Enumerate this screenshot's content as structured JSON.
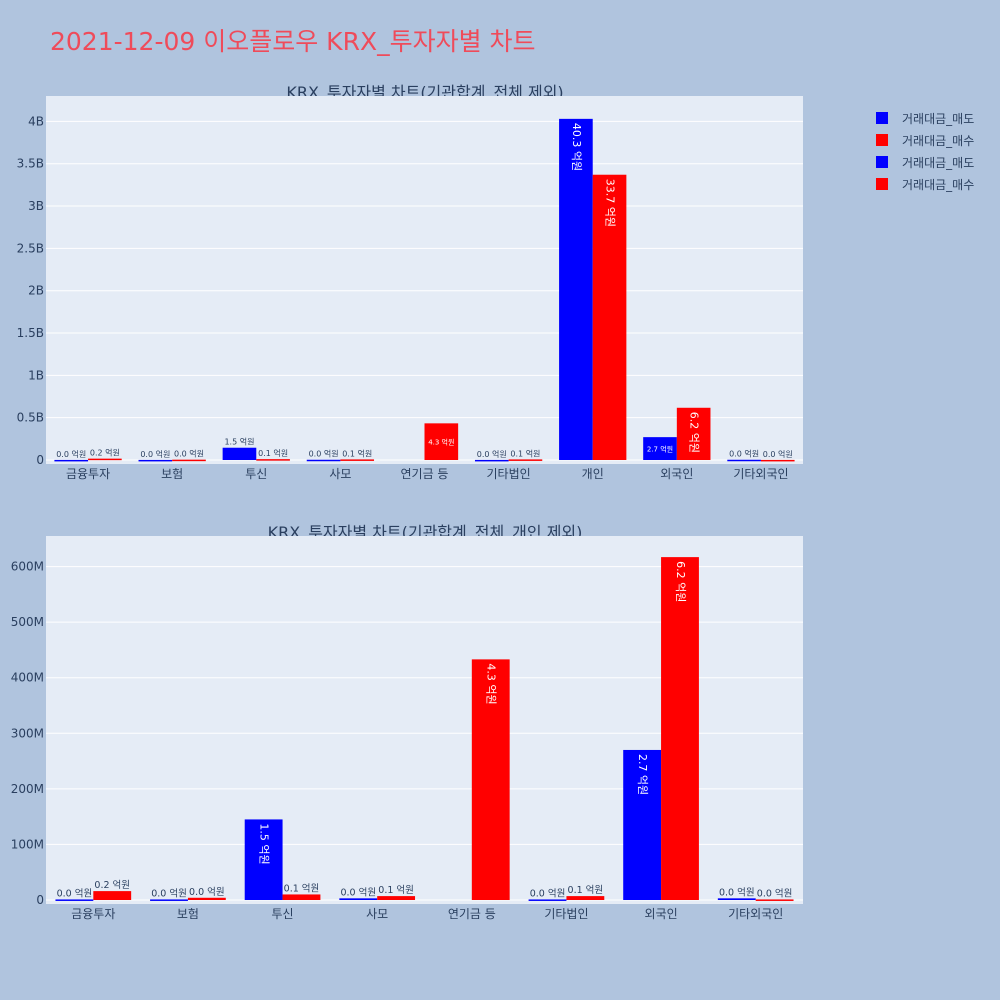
{
  "page": {
    "title": "2021-12-09 이오플로우 KRX_투자자별 차트"
  },
  "legend": [
    {
      "label": "거래대금_매도",
      "color": "#0000ff"
    },
    {
      "label": "거래대금_매수",
      "color": "#ff0000"
    },
    {
      "label": "거래대금_매도",
      "color": "#0000ff"
    },
    {
      "label": "거래대금_매수",
      "color": "#ff0000"
    }
  ],
  "chart_data": [
    {
      "type": "bar",
      "title": "KRX_투자자별 차트(기관합계_전체 제외)",
      "categories": [
        "금융투자",
        "보험",
        "투신",
        "사모",
        "연기금 등",
        "기타법인",
        "개인",
        "외국인",
        "기타외국인"
      ],
      "ylim": [
        0,
        4300000000
      ],
      "yticks": [
        0,
        500000000,
        1000000000,
        1500000000,
        2000000000,
        2500000000,
        3000000000,
        3500000000,
        4000000000
      ],
      "ytick_labels": [
        "0",
        "0.5B",
        "1B",
        "1.5B",
        "2B",
        "2.5B",
        "3B",
        "3.5B",
        "4B"
      ],
      "series": [
        {
          "name": "거래대금_매도",
          "color": "#0000ff",
          "values": [
            1000000,
            1000000,
            145000000,
            3000000,
            0,
            1000000,
            4030000000,
            270000000,
            3000000
          ],
          "labels": [
            "0.0 억원",
            "0.0 억원",
            "1.5 억원",
            "0.0 억원",
            "",
            "0.0 억원",
            "40.3 억원",
            "2.7 억원",
            "0.0 억원"
          ]
        },
        {
          "name": "거래대금_매수",
          "color": "#ff0000",
          "values": [
            16000000,
            4000000,
            10000000,
            7000000,
            433000000,
            7000000,
            3370000000,
            617000000,
            1000000
          ],
          "labels": [
            "0.2 억원",
            "0.0 억원",
            "0.1 억원",
            "0.1 억원",
            "4.3 억원",
            "0.1 억원",
            "33.7 억원",
            "6.2 억원",
            "0.0 억원"
          ]
        }
      ]
    },
    {
      "type": "bar",
      "title": "KRX_투자자별 차트(기관합계_전체_개인 제외)",
      "categories": [
        "금융투자",
        "보험",
        "투신",
        "사모",
        "연기금 등",
        "기타법인",
        "외국인",
        "기타외국인"
      ],
      "ylim": [
        0,
        655000000
      ],
      "yticks": [
        0,
        100000000,
        200000000,
        300000000,
        400000000,
        500000000,
        600000000
      ],
      "ytick_labels": [
        "0",
        "100M",
        "200M",
        "300M",
        "400M",
        "500M",
        "600M"
      ],
      "series": [
        {
          "name": "거래대금_매도",
          "color": "#0000ff",
          "values": [
            1000000,
            1000000,
            145000000,
            3000000,
            0,
            1000000,
            270000000,
            3000000
          ],
          "labels": [
            "0.0 억원",
            "0.0 억원",
            "1.5 억원",
            "0.0 억원",
            "",
            "0.0 억원",
            "2.7 억원",
            "0.0 억원"
          ]
        },
        {
          "name": "거래대금_매수",
          "color": "#ff0000",
          "values": [
            16000000,
            4000000,
            10000000,
            7000000,
            433000000,
            7000000,
            617000000,
            1000000
          ],
          "labels": [
            "0.2 억원",
            "0.0 억원",
            "0.1 억원",
            "0.1 억원",
            "4.3 억원",
            "0.1 억원",
            "6.2 억원",
            "0.0 억원"
          ]
        }
      ]
    }
  ]
}
